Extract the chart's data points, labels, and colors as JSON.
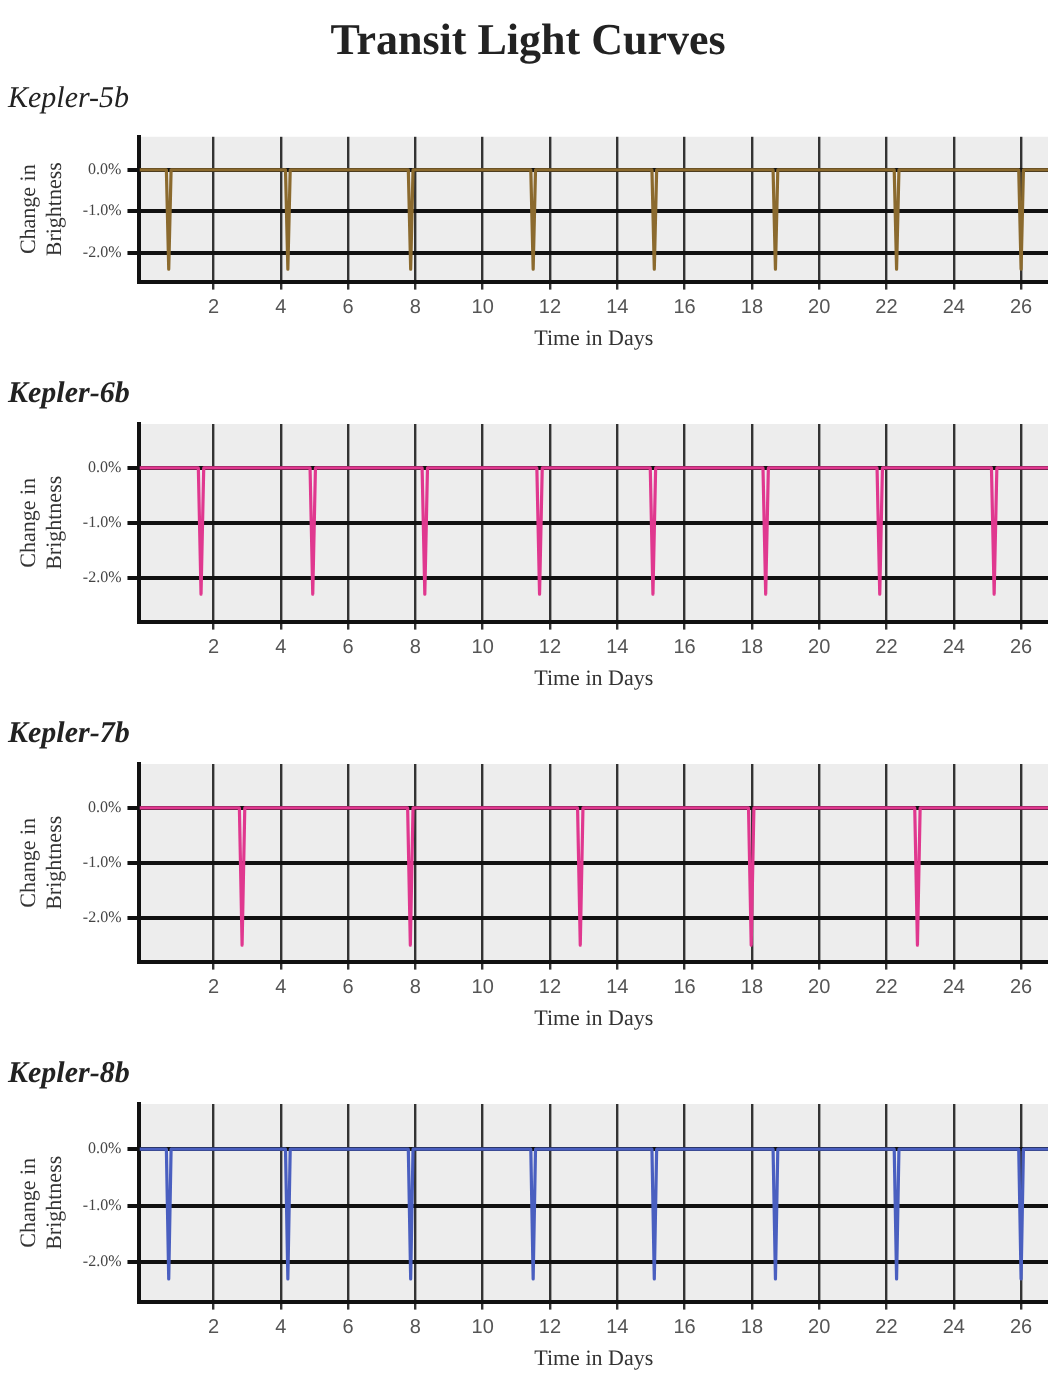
{
  "chart_data": [
    {
      "type": "line",
      "title": "Transit Light Curves",
      "subtitle": "Kepler-5b",
      "xlabel": "Time in Days",
      "ylabel": "Change in Brightness",
      "xlim": [
        -0.2,
        26.8
      ],
      "ylim": [
        -2.7,
        0.8
      ],
      "xticks": [
        2,
        4,
        6,
        8,
        10,
        12,
        14,
        16,
        18,
        20,
        22,
        24,
        26
      ],
      "yticks": [
        {
          "value": 0,
          "label": "0.0%"
        },
        {
          "value": -1,
          "label": "-1.0%"
        },
        {
          "value": -2,
          "label": "-2.0%"
        }
      ],
      "grid": true,
      "legend": false,
      "marker": "none",
      "series": [
        {
          "color": "#8b6a2e",
          "x": [
            -0.2,
            0.6,
            0.67,
            0.74,
            4.14,
            4.21,
            4.28,
            7.79,
            7.86,
            7.93,
            11.43,
            11.5,
            11.57,
            15.03,
            15.1,
            15.17,
            18.63,
            18.7,
            18.77,
            22.23,
            22.3,
            22.37,
            25.93,
            26.0,
            26.07,
            26.8
          ],
          "values": [
            0,
            0,
            -2.4,
            0,
            0,
            -2.4,
            0,
            0,
            -2.4,
            0,
            0,
            -2.4,
            0,
            0,
            -2.4,
            0,
            0,
            -2.4,
            0,
            0,
            -2.4,
            0,
            0,
            -2.4,
            0,
            0
          ]
        }
      ]
    },
    {
      "type": "line",
      "title": "Kepler-6b",
      "xlabel": "Time in Days",
      "ylabel": "Change in Brightness",
      "xlim": [
        -0.2,
        26.8
      ],
      "ylim": [
        -2.8,
        0.8
      ],
      "xticks": [
        2,
        4,
        6,
        8,
        10,
        12,
        14,
        16,
        18,
        20,
        22,
        24,
        26
      ],
      "yticks": [
        {
          "value": 0,
          "label": "0.0%"
        },
        {
          "value": -1,
          "label": "-1.0%"
        },
        {
          "value": -2,
          "label": "-2.0%"
        }
      ],
      "grid": true,
      "legend": false,
      "marker": "none",
      "series": [
        {
          "color": "#e0388f",
          "x": [
            -0.2,
            1.55,
            1.63,
            1.71,
            4.87,
            4.95,
            5.03,
            8.2,
            8.28,
            8.36,
            11.61,
            11.69,
            11.77,
            14.98,
            15.06,
            15.14,
            18.33,
            18.41,
            18.49,
            21.72,
            21.8,
            21.88,
            25.12,
            25.2,
            25.28,
            26.8
          ],
          "values": [
            0,
            0,
            -2.3,
            0,
            0,
            -2.3,
            0,
            0,
            -2.3,
            0,
            0,
            -2.3,
            0,
            0,
            -2.3,
            0,
            0,
            -2.3,
            0,
            0,
            -2.3,
            0,
            0,
            -2.3,
            0,
            0
          ]
        }
      ]
    },
    {
      "type": "line",
      "title": "Kepler-7b",
      "xlabel": "Time in Days",
      "ylabel": "Change in Brightness",
      "xlim": [
        -0.2,
        26.8
      ],
      "ylim": [
        -2.8,
        0.8
      ],
      "xticks": [
        2,
        4,
        6,
        8,
        10,
        12,
        14,
        16,
        18,
        20,
        22,
        24,
        26
      ],
      "yticks": [
        {
          "value": 0,
          "label": "0.0%"
        },
        {
          "value": -1,
          "label": "-1.0%"
        },
        {
          "value": -2,
          "label": "-2.0%"
        }
      ],
      "grid": true,
      "legend": false,
      "marker": "none",
      "series": [
        {
          "color": "#e0388f",
          "x": [
            -0.2,
            2.77,
            2.85,
            2.93,
            7.77,
            7.85,
            7.93,
            12.82,
            12.9,
            12.98,
            17.9,
            17.98,
            18.06,
            22.84,
            22.92,
            23.0,
            26.8
          ],
          "values": [
            0,
            0,
            -2.5,
            0,
            0,
            -2.5,
            0,
            0,
            -2.5,
            0,
            0,
            -2.5,
            0,
            0,
            -2.5,
            0,
            0
          ]
        }
      ]
    },
    {
      "type": "line",
      "title": "Kepler-8b",
      "xlabel": "Time in Days",
      "ylabel": "Change in Brightness",
      "xlim": [
        -0.2,
        26.8
      ],
      "ylim": [
        -2.7,
        0.8
      ],
      "xticks": [
        2,
        4,
        6,
        8,
        10,
        12,
        14,
        16,
        18,
        20,
        22,
        24,
        26
      ],
      "yticks": [
        {
          "value": 0,
          "label": "0.0%"
        },
        {
          "value": -1,
          "label": "-1.0%"
        },
        {
          "value": -2,
          "label": "-2.0%"
        }
      ],
      "grid": true,
      "legend": false,
      "marker": "none",
      "series": [
        {
          "color": "#4a5fc0",
          "x": [
            -0.2,
            0.6,
            0.67,
            0.74,
            4.14,
            4.21,
            4.28,
            7.79,
            7.86,
            7.93,
            11.43,
            11.5,
            11.57,
            15.03,
            15.1,
            15.17,
            18.63,
            18.7,
            18.77,
            22.23,
            22.3,
            22.37,
            25.93,
            26.0,
            26.07,
            26.8
          ],
          "values": [
            0,
            0,
            -2.3,
            0,
            0,
            -2.3,
            0,
            0,
            -2.3,
            0,
            0,
            -2.3,
            0,
            0,
            -2.3,
            0,
            0,
            -2.3,
            0,
            0,
            -2.3,
            0,
            0,
            -2.3,
            0,
            0
          ]
        }
      ]
    }
  ]
}
